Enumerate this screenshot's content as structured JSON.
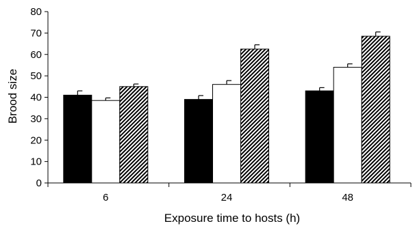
{
  "chart_data": {
    "type": "bar",
    "title": "",
    "xlabel": "Exposure time to hosts (h)",
    "ylabel": "Brood size",
    "categories": [
      "6",
      "24",
      "48"
    ],
    "ylim": [
      0,
      80
    ],
    "yticks": [
      0,
      10,
      20,
      30,
      40,
      50,
      60,
      70,
      80
    ],
    "grid": false,
    "legend": "none",
    "series": [
      {
        "fill": "solid-black",
        "values": [
          41,
          39,
          43
        ],
        "errors": [
          2,
          1.8,
          1.5
        ]
      },
      {
        "fill": "white",
        "values": [
          38.5,
          46,
          54
        ],
        "errors": [
          1.2,
          1.8,
          1.6
        ]
      },
      {
        "fill": "diagonal-hatch",
        "values": [
          45,
          62.5,
          68.5
        ],
        "errors": [
          1.2,
          2,
          2
        ]
      }
    ]
  }
}
